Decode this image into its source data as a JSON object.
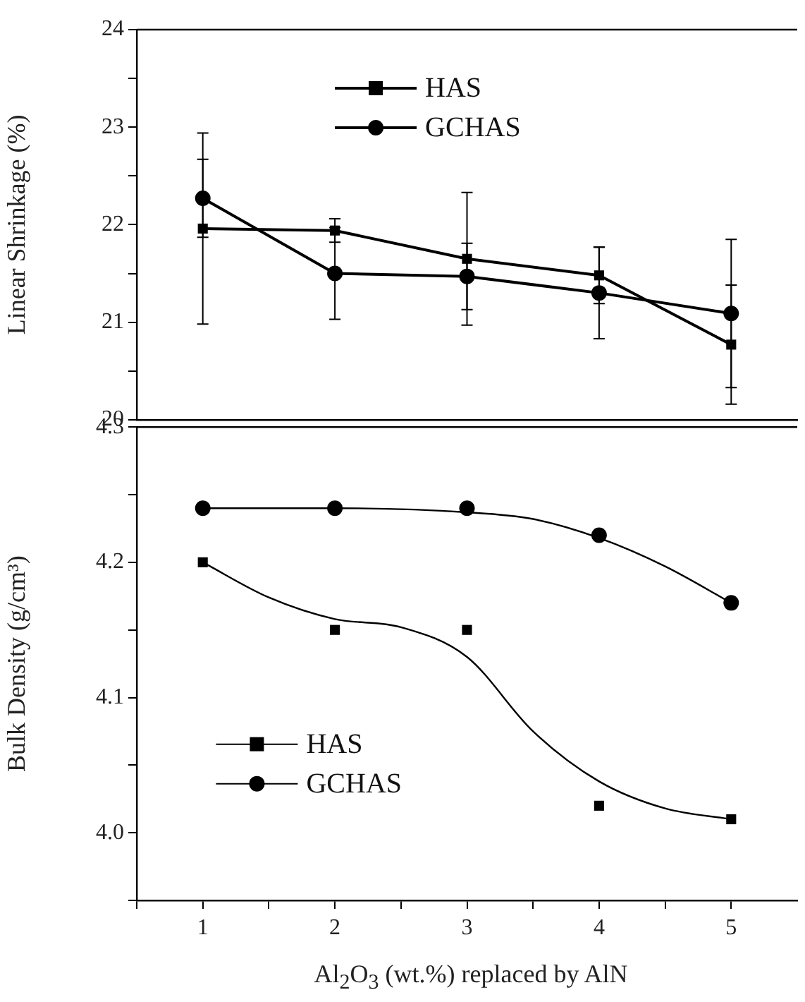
{
  "chart_data": [
    {
      "type": "line",
      "ylabel": "Linear Shrinkage (%)",
      "x": [
        1,
        2,
        3,
        4,
        5
      ],
      "xlim": [
        0.5,
        5.5
      ],
      "ylim": [
        20,
        24
      ],
      "yticks": [
        20,
        {
          "value": 20.5,
          "label": null
        },
        21,
        {
          "value": 21.5,
          "label": null
        },
        22,
        {
          "value": 22.5,
          "label": null
        },
        23,
        {
          "value": 23.5,
          "label": null
        },
        24
      ],
      "tick_labels": "y",
      "grid": false,
      "legend": "top",
      "line_style": "solid",
      "series": [
        {
          "name": "HAS",
          "color": "#000000",
          "marker": "square",
          "values": [
            21.96,
            21.94,
            21.65,
            21.48,
            20.77
          ],
          "errors": [
            0.98,
            0.12,
            0.68,
            0.29,
            0.61
          ]
        },
        {
          "name": "GCHAS",
          "color": "#000000",
          "marker": "circle",
          "values": [
            22.27,
            21.5,
            21.47,
            21.3,
            21.09
          ],
          "errors": [
            0.4,
            0.47,
            0.34,
            0.47,
            0.76
          ]
        }
      ]
    },
    {
      "type": "scatter",
      "ylabel": "Bulk Density (g/cm³)",
      "xlabel": "Al$_{2}$O$_{3}$ (wt.%) replaced by AlN",
      "x": [
        1,
        2,
        3,
        4,
        5
      ],
      "xlim": [
        0.5,
        5.5
      ],
      "xticks": [
        {
          "value": 0.5,
          "label": null
        },
        1,
        {
          "value": 1.5,
          "label": null
        },
        2,
        {
          "value": 2.5,
          "label": null
        },
        3,
        {
          "value": 3.5,
          "label": null
        },
        4,
        {
          "value": 4.5,
          "label": null
        },
        5
      ],
      "ylim": [
        3.95,
        4.3
      ],
      "yticks": [
        {
          "value": 3.95,
          "label": null
        },
        {
          "value": 4.0,
          "label": "4.0"
        },
        {
          "value": 4.05,
          "label": null
        },
        4.1,
        {
          "value": 4.15,
          "label": null
        },
        4.2,
        {
          "value": 4.25,
          "label": null
        },
        4.3
      ],
      "grid": false,
      "legend": "bottom left",
      "series": [
        {
          "name": "HAS",
          "color": "#000000",
          "marker": "square",
          "values": [
            4.2,
            4.15,
            4.15,
            4.02,
            4.01
          ]
        },
        {
          "name": "GCHAS",
          "color": "#000000",
          "marker": "circle",
          "values": [
            4.24,
            4.24,
            4.24,
            4.22,
            4.17
          ]
        },
        {
          "type": "line",
          "color": "#000000",
          "marker": "none",
          "x": [
            1,
            1.5,
            2,
            2.5,
            3,
            3.5,
            4,
            4.5,
            5
          ],
          "values": [
            4.2,
            4.174,
            4.158,
            4.152,
            4.13,
            4.075,
            4.038,
            4.018,
            4.01
          ]
        },
        {
          "type": "line",
          "color": "#000000",
          "marker": "none",
          "x": [
            1,
            2,
            3,
            3.5,
            4,
            4.5,
            5
          ],
          "values": [
            4.24,
            4.24,
            4.237,
            4.232,
            4.218,
            4.197,
            4.17
          ]
        }
      ]
    }
  ]
}
